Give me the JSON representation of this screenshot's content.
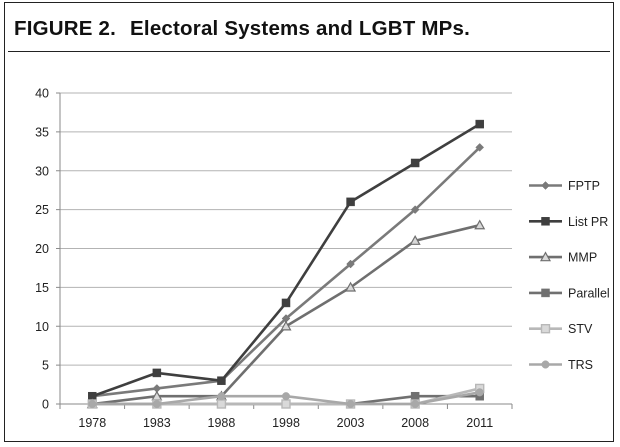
{
  "figure": {
    "label": "FIGURE 2.",
    "title": "Electoral Systems and LGBT MPs."
  },
  "chart_data": {
    "type": "line",
    "title": "FIGURE 2. Electoral Systems and LGBT MPs.",
    "xlabel": "",
    "ylabel": "",
    "categories": [
      "1978",
      "1983",
      "1988",
      "1998",
      "2003",
      "2008",
      "2011"
    ],
    "ylim": [
      0,
      40
    ],
    "yticks": [
      0,
      5,
      10,
      15,
      20,
      25,
      30,
      35,
      40
    ],
    "grid": "horizontal",
    "legend_position": "right",
    "series": [
      {
        "name": "FPTP",
        "values": [
          1,
          2,
          3,
          11,
          18,
          25,
          33
        ],
        "color": "#7a7a7a",
        "marker": "diamond"
      },
      {
        "name": "List PR",
        "values": [
          1,
          4,
          3,
          13,
          26,
          31,
          36
        ],
        "color": "#3f3f3f",
        "marker": "square"
      },
      {
        "name": "MMP",
        "values": [
          0,
          1,
          1,
          10,
          15,
          21,
          23
        ],
        "color": "#6f6f6f",
        "marker": "triangle"
      },
      {
        "name": "Parallel",
        "values": [
          0,
          0,
          0,
          0,
          0,
          1,
          1
        ],
        "color": "#707070",
        "marker": "square"
      },
      {
        "name": "STV",
        "values": [
          0,
          0,
          0,
          0,
          0,
          0,
          2
        ],
        "color": "#b8b8b8",
        "marker": "square-light"
      },
      {
        "name": "TRS",
        "values": [
          0,
          0,
          1,
          1,
          0,
          0,
          1.5
        ],
        "color": "#a8a8a8",
        "marker": "circle"
      }
    ]
  }
}
